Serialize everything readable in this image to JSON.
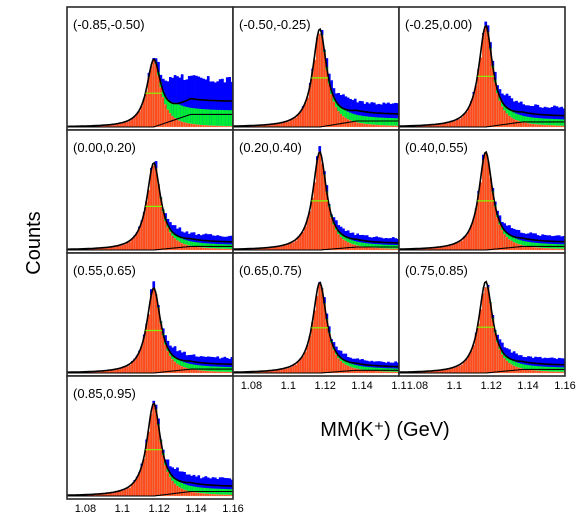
{
  "chart_data": {
    "type": "histogram-grid",
    "ylabel": "Counts",
    "xlabel": "MM(K⁺) (GeV)",
    "xticks": [
      "1.08",
      "1.1",
      "1.12",
      "1.14",
      "1.16"
    ],
    "xticks_short": [
      "1.08",
      "1.1",
      "1.12",
      "1.14",
      "1.1"
    ],
    "x_range": [
      1.07,
      1.16
    ],
    "panels": [
      {
        "label": "(-0.85,-0.50)",
        "peak": 1.117,
        "peak_height": 0.62,
        "tail": 0.42
      },
      {
        "label": "(-0.50,-0.25)",
        "peak": 1.117,
        "peak_height": 0.9,
        "tail": 0.2
      },
      {
        "label": "(-0.25,0.00)",
        "peak": 1.117,
        "peak_height": 0.93,
        "tail": 0.17
      },
      {
        "label": "(0.00,0.20)",
        "peak": 1.117,
        "peak_height": 0.8,
        "tail": 0.12
      },
      {
        "label": "(0.20,0.40)",
        "peak": 1.117,
        "peak_height": 0.9,
        "tail": 0.1
      },
      {
        "label": "(0.40,0.55)",
        "peak": 1.117,
        "peak_height": 0.9,
        "tail": 0.12
      },
      {
        "label": "(0.55,0.65)",
        "peak": 1.117,
        "peak_height": 0.78,
        "tail": 0.13
      },
      {
        "label": "(0.65,0.75)",
        "peak": 1.117,
        "peak_height": 0.83,
        "tail": 0.09
      },
      {
        "label": "(0.75,0.85)",
        "peak": 1.117,
        "peak_height": 0.84,
        "tail": 0.12
      },
      {
        "label": "(0.85,0.95)",
        "peak": 1.117,
        "peak_height": 0.85,
        "tail": 0.15
      }
    ],
    "series": [
      {
        "name": "",
        "color": "#0000ff"
      },
      {
        "name": "",
        "color": "#00ee33"
      },
      {
        "name": "",
        "color": "#ff4a1c"
      },
      {
        "name": "",
        "color": "#000000"
      }
    ]
  }
}
